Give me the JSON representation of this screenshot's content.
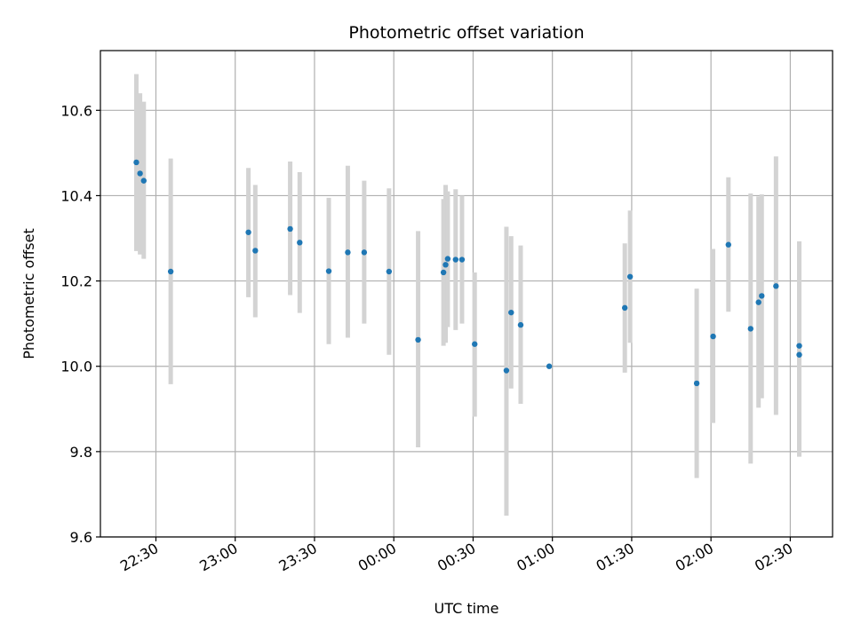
{
  "chart_data": {
    "type": "scatter",
    "title": "Photometric offset variation",
    "xlabel": "UTC time",
    "ylabel": "Photometric offset",
    "xlim": [
      "2000-01-01T22:09:00",
      "2000-01-02T02:46:00"
    ],
    "ylim": [
      9.6,
      10.74
    ],
    "grid": true,
    "x_ticks": [
      "2000-01-01T22:30:00",
      "2000-01-01T23:00:00",
      "2000-01-01T23:30:00",
      "2000-01-02T00:00:00",
      "2000-01-02T00:30:00",
      "2000-01-02T01:00:00",
      "2000-01-02T01:30:00",
      "2000-01-02T02:00:00",
      "2000-01-02T02:30:00"
    ],
    "x_tick_labels": [
      "22:30",
      "23:00",
      "23:30",
      "00:00",
      "00:30",
      "01:00",
      "01:30",
      "02:00",
      "02:30"
    ],
    "y_ticks": [
      9.6,
      9.8,
      10.0,
      10.2,
      10.4,
      10.6
    ],
    "y_tick_labels": [
      "9.6",
      "9.8",
      "10.0",
      "10.2",
      "10.4",
      "10.6"
    ],
    "colors": {
      "point": "#1f77b4",
      "errorbar": "#d3d3d3",
      "grid": "#b0b0b0"
    },
    "points": [
      {
        "t": "2000-01-01T22:22:36",
        "y": 10.478,
        "lo": 10.27,
        "hi": 10.685
      },
      {
        "t": "2000-01-01T22:24:00",
        "y": 10.452,
        "lo": 10.262,
        "hi": 10.64
      },
      {
        "t": "2000-01-01T22:25:24",
        "y": 10.435,
        "lo": 10.252,
        "hi": 10.62
      },
      {
        "t": "2000-01-01T22:35:36",
        "y": 10.222,
        "lo": 9.958,
        "hi": 10.487
      },
      {
        "t": "2000-01-01T23:05:00",
        "y": 10.314,
        "lo": 10.162,
        "hi": 10.465
      },
      {
        "t": "2000-01-01T23:07:36",
        "y": 10.271,
        "lo": 10.115,
        "hi": 10.425
      },
      {
        "t": "2000-01-01T23:20:48",
        "y": 10.322,
        "lo": 10.167,
        "hi": 10.48
      },
      {
        "t": "2000-01-01T23:24:24",
        "y": 10.29,
        "lo": 10.125,
        "hi": 10.455
      },
      {
        "t": "2000-01-01T23:35:24",
        "y": 10.223,
        "lo": 10.052,
        "hi": 10.395
      },
      {
        "t": "2000-01-01T23:42:36",
        "y": 10.267,
        "lo": 10.067,
        "hi": 10.47
      },
      {
        "t": "2000-01-01T23:48:48",
        "y": 10.267,
        "lo": 10.1,
        "hi": 10.435
      },
      {
        "t": "2000-01-01T23:58:12",
        "y": 10.222,
        "lo": 10.027,
        "hi": 10.417
      },
      {
        "t": "2000-01-02T00:09:12",
        "y": 10.062,
        "lo": 9.81,
        "hi": 10.317
      },
      {
        "t": "2000-01-02T00:18:48",
        "y": 10.22,
        "lo": 10.048,
        "hi": 10.392
      },
      {
        "t": "2000-01-02T00:19:36",
        "y": 10.238,
        "lo": 10.055,
        "hi": 10.425
      },
      {
        "t": "2000-01-02T00:20:24",
        "y": 10.252,
        "lo": 10.092,
        "hi": 10.41
      },
      {
        "t": "2000-01-02T00:23:24",
        "y": 10.25,
        "lo": 10.085,
        "hi": 10.415
      },
      {
        "t": "2000-01-02T00:25:48",
        "y": 10.25,
        "lo": 10.1,
        "hi": 10.4
      },
      {
        "t": "2000-01-02T00:30:36",
        "y": 10.052,
        "lo": 9.882,
        "hi": 10.22
      },
      {
        "t": "2000-01-02T00:42:36",
        "y": 9.99,
        "lo": 9.65,
        "hi": 10.327
      },
      {
        "t": "2000-01-02T00:44:24",
        "y": 10.126,
        "lo": 9.948,
        "hi": 10.305
      },
      {
        "t": "2000-01-02T00:48:00",
        "y": 10.097,
        "lo": 9.912,
        "hi": 10.283
      },
      {
        "t": "2000-01-02T00:58:48",
        "y": 10.0,
        "lo": 10.0,
        "hi": 10.0
      },
      {
        "t": "2000-01-02T01:27:24",
        "y": 10.137,
        "lo": 9.985,
        "hi": 10.288
      },
      {
        "t": "2000-01-02T01:29:24",
        "y": 10.21,
        "lo": 10.055,
        "hi": 10.365
      },
      {
        "t": "2000-01-02T01:54:36",
        "y": 9.96,
        "lo": 9.738,
        "hi": 10.182
      },
      {
        "t": "2000-01-02T02:00:48",
        "y": 10.07,
        "lo": 9.867,
        "hi": 10.275
      },
      {
        "t": "2000-01-02T02:06:36",
        "y": 10.285,
        "lo": 10.128,
        "hi": 10.443
      },
      {
        "t": "2000-01-02T02:15:00",
        "y": 10.088,
        "lo": 9.772,
        "hi": 10.405
      },
      {
        "t": "2000-01-02T02:18:00",
        "y": 10.15,
        "lo": 9.903,
        "hi": 10.398
      },
      {
        "t": "2000-01-02T02:19:12",
        "y": 10.165,
        "lo": 9.925,
        "hi": 10.403
      },
      {
        "t": "2000-01-02T02:24:36",
        "y": 10.188,
        "lo": 9.886,
        "hi": 10.492
      },
      {
        "t": "2000-01-02T02:33:24",
        "y": 10.048,
        "lo": 9.803,
        "hi": 10.293
      },
      {
        "t": "2000-01-02T02:33:24",
        "y": 10.027,
        "lo": 9.788,
        "hi": 10.265
      }
    ]
  }
}
